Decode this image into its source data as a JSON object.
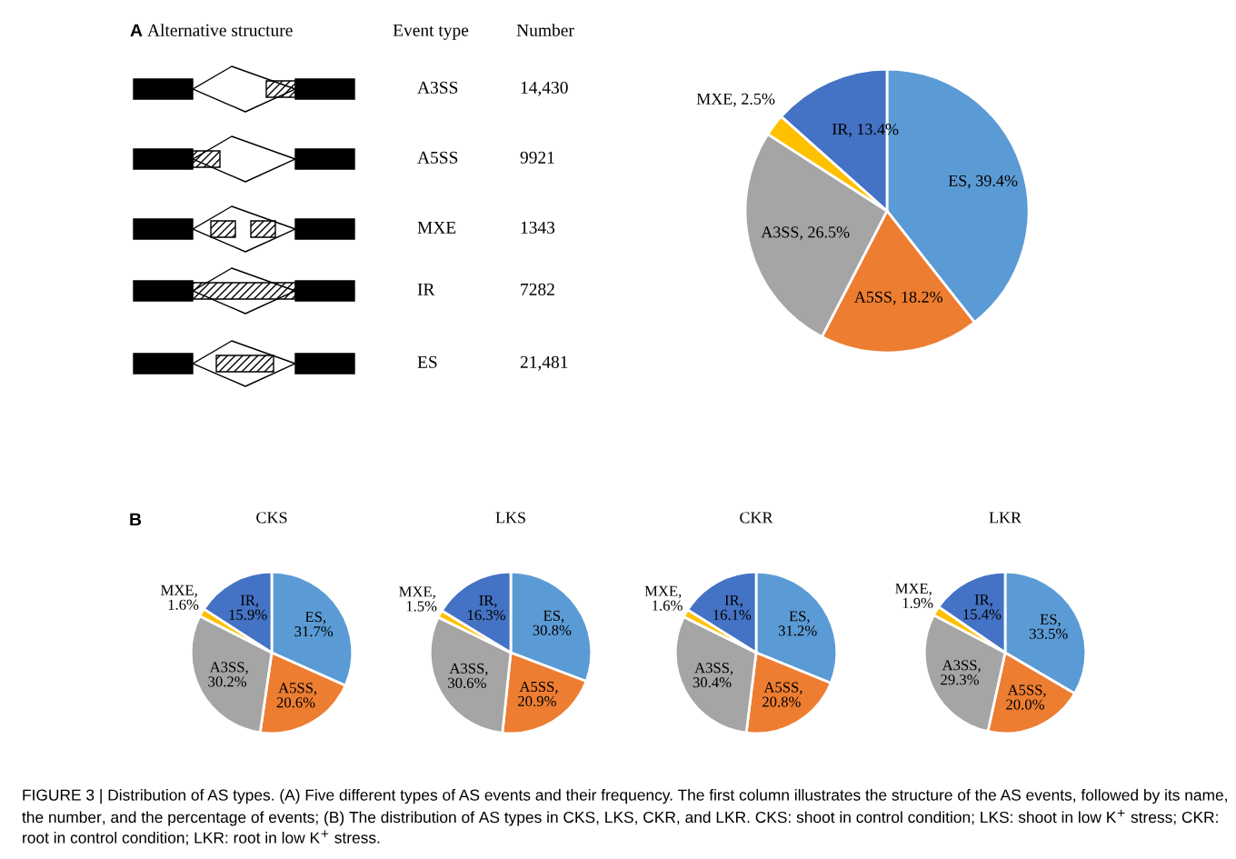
{
  "chart_data": [
    {
      "type": "other",
      "annotations": [
        "A",
        "Alternative structure",
        "Event type",
        "Number",
        "A3SS",
        "14,430",
        "A5SS",
        "9921",
        "MXE",
        "1343",
        "IR",
        "7282",
        "ES",
        "21,481"
      ]
    },
    {
      "type": "pie",
      "categories": [
        "ES",
        "A5SS",
        "A3SS",
        "MXE",
        "IR"
      ],
      "values": [
        39.4,
        18.2,
        26.5,
        2.5,
        13.4
      ],
      "colors": [
        "#5b9bd5",
        "#ed7d31",
        "#a5a5a5",
        "#ffc000",
        "#4472c4"
      ],
      "value_labels": [
        ", 39.4%",
        ", 18.2%",
        ", 26.5%",
        ", 2.5%",
        ", 13.4%"
      ]
    },
    {
      "type": "pie",
      "title": "CKS",
      "categories": [
        "ES",
        "A5SS",
        "A3SS",
        "MXE",
        "IR"
      ],
      "values": [
        31.7,
        20.6,
        30.2,
        1.6,
        15.9
      ],
      "colors": [
        "#5b9bd5",
        "#ed7d31",
        "#a5a5a5",
        "#ffc000",
        "#4472c4"
      ],
      "value_labels": [
        ",\n31.7%",
        ",\n20.6%",
        ",\n30.2%",
        ",\n1.6%",
        ",\n15.9%"
      ],
      "annotations": [
        "B",
        "FIGURE 3 | Distribution of AS types. (A) Five different types of AS events and their frequency. The first column illustrates the structure of the AS events, followed by its name, the number, and the percentage of events; (B) The distribution of AS types in CKS, LKS, CKR, and LKR. CKS: shoot in control condition; LKS: shoot in low K$^{+}$ stress; CKR: root in control condition; LKR: root in low K$^{+}$ stress."
      ]
    },
    {
      "type": "pie",
      "title": "LKS",
      "categories": [
        "ES",
        "A5SS",
        "A3SS",
        "MXE",
        "IR"
      ],
      "values": [
        30.8,
        20.9,
        30.6,
        1.5,
        16.3
      ],
      "colors": [
        "#5b9bd5",
        "#ed7d31",
        "#a5a5a5",
        "#ffc000",
        "#4472c4"
      ],
      "value_labels": [
        ",\n30.8%",
        ",\n20.9%",
        ",\n30.6%",
        ",\n1.5%",
        ",\n16.3%"
      ]
    },
    {
      "type": "pie",
      "title": "CKR",
      "categories": [
        "ES",
        "A5SS",
        "A3SS",
        "MXE",
        "IR"
      ],
      "values": [
        31.2,
        20.8,
        30.4,
        1.6,
        16.1
      ],
      "colors": [
        "#5b9bd5",
        "#ed7d31",
        "#a5a5a5",
        "#ffc000",
        "#4472c4"
      ],
      "value_labels": [
        ",\n31.2%",
        ",\n20.8%",
        ",\n30.4%",
        ",\n1.6%",
        ",\n16.1%"
      ]
    },
    {
      "type": "pie",
      "title": "LKR",
      "categories": [
        "ES",
        "A5SS",
        "A3SS",
        "MXE",
        "IR"
      ],
      "values": [
        33.5,
        20.0,
        29.3,
        1.9,
        15.4
      ],
      "colors": [
        "#5b9bd5",
        "#ed7d31",
        "#a5a5a5",
        "#ffc000",
        "#4472c4"
      ],
      "value_labels": [
        ",\n33.5%",
        ",\n20.0%",
        ",\n29.3%",
        ",\n1.9%",
        ",\n15.4%"
      ]
    }
  ]
}
